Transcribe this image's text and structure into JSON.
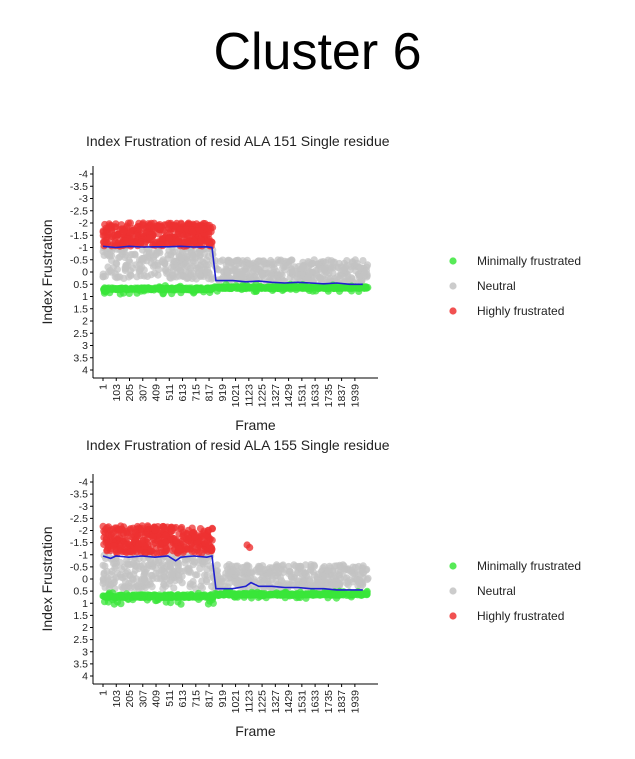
{
  "page_title": "Cluster 6",
  "colors": {
    "minimally_frustrated": "#39e639",
    "neutral": "#c3c3c3",
    "highly_frustrated": "#ee3232",
    "mean_line": "#1f1fcf",
    "axis": "#000000"
  },
  "chart_data": [
    {
      "type": "scatter",
      "title": "Index Frustration of resid ALA 151 Single residue",
      "xlabel": "Frame",
      "ylabel": "Index Frustration",
      "y_reversed": true,
      "ylim": [
        -4,
        4
      ],
      "yticks": [
        "-4",
        "-3.5",
        "-3",
        "-2.5",
        "-2",
        "-1.5",
        "-1",
        "-0.5",
        "0",
        "0.5",
        "1",
        "1.5",
        "2",
        "2.5",
        "3",
        "3.5",
        "4"
      ],
      "xticks": [
        "1",
        "103",
        "205",
        "307",
        "409",
        "511",
        "613",
        "715",
        "817",
        "919",
        "1021",
        "1123",
        "1225",
        "1327",
        "1429",
        "1531",
        "1633",
        "1735",
        "1837",
        "1939"
      ],
      "xlim": [
        1,
        2040
      ],
      "grid": false,
      "legend_position": "right",
      "legend": [
        "Minimally frustrated",
        "Neutral",
        "Highly frustrated"
      ],
      "segments": [
        {
          "x_from": 1,
          "x_to": 850,
          "highly": [
            -2.0,
            -1.05
          ],
          "neutral": [
            -1.0,
            0.3
          ],
          "minimal": [
            0.55,
            0.9
          ]
        },
        {
          "x_from": 860,
          "x_to": 2040,
          "highly": null,
          "neutral": [
            -0.5,
            0.45
          ],
          "minimal": [
            0.5,
            0.8
          ]
        }
      ],
      "mean_line": {
        "x": [
          1,
          100,
          200,
          300,
          400,
          500,
          600,
          700,
          800,
          840,
          870,
          1000,
          1100,
          1200,
          1300,
          1400,
          1500,
          1600,
          1700,
          1800,
          1900,
          2000
        ],
        "y": [
          -1.05,
          -1.0,
          -1.05,
          -1.02,
          -1.03,
          -1.03,
          -1.05,
          -1.02,
          -1.03,
          -1.0,
          0.35,
          0.35,
          0.4,
          0.37,
          0.42,
          0.45,
          0.42,
          0.45,
          0.48,
          0.45,
          0.5,
          0.5
        ]
      }
    },
    {
      "type": "scatter",
      "title": "Index Frustration of resid ALA 155 Single residue",
      "xlabel": "Frame",
      "ylabel": "Index Frustration",
      "y_reversed": true,
      "ylim": [
        -4,
        4
      ],
      "yticks": [
        "-4",
        "-3.5",
        "-3",
        "-2.5",
        "-2",
        "-1.5",
        "-1",
        "-0.5",
        "0",
        "0.5",
        "1",
        "1.5",
        "2",
        "2.5",
        "3",
        "3.5",
        "4"
      ],
      "xticks": [
        "1",
        "103",
        "205",
        "307",
        "409",
        "511",
        "613",
        "715",
        "817",
        "919",
        "1021",
        "1123",
        "1225",
        "1327",
        "1429",
        "1531",
        "1633",
        "1735",
        "1837",
        "1939"
      ],
      "xlim": [
        1,
        2040
      ],
      "grid": false,
      "legend_position": "right",
      "legend": [
        "Minimally frustrated",
        "Neutral",
        "Highly frustrated"
      ],
      "segments": [
        {
          "x_from": 1,
          "x_to": 850,
          "highly": [
            -2.2,
            -1.05
          ],
          "neutral": [
            -1.0,
            0.4
          ],
          "minimal": [
            0.55,
            1.05
          ]
        },
        {
          "x_from": 860,
          "x_to": 2040,
          "highly": null,
          "neutral": [
            -0.6,
            0.45
          ],
          "minimal": [
            0.5,
            0.8
          ]
        }
      ],
      "extra_highly": [
        {
          "x": 1110,
          "y": -1.4
        },
        {
          "x": 1130,
          "y": -1.3
        }
      ],
      "mean_line": {
        "x": [
          1,
          60,
          100,
          200,
          300,
          400,
          500,
          560,
          600,
          700,
          800,
          840,
          870,
          1000,
          1100,
          1140,
          1200,
          1300,
          1400,
          1500,
          1600,
          1700,
          1800,
          1900,
          2000
        ],
        "y": [
          -0.95,
          -0.85,
          -0.95,
          -0.9,
          -0.95,
          -0.9,
          -0.95,
          -0.75,
          -0.9,
          -0.95,
          -0.9,
          -0.95,
          0.4,
          0.4,
          0.3,
          0.15,
          0.3,
          0.3,
          0.35,
          0.35,
          0.4,
          0.4,
          0.45,
          0.45,
          0.45
        ]
      }
    }
  ]
}
